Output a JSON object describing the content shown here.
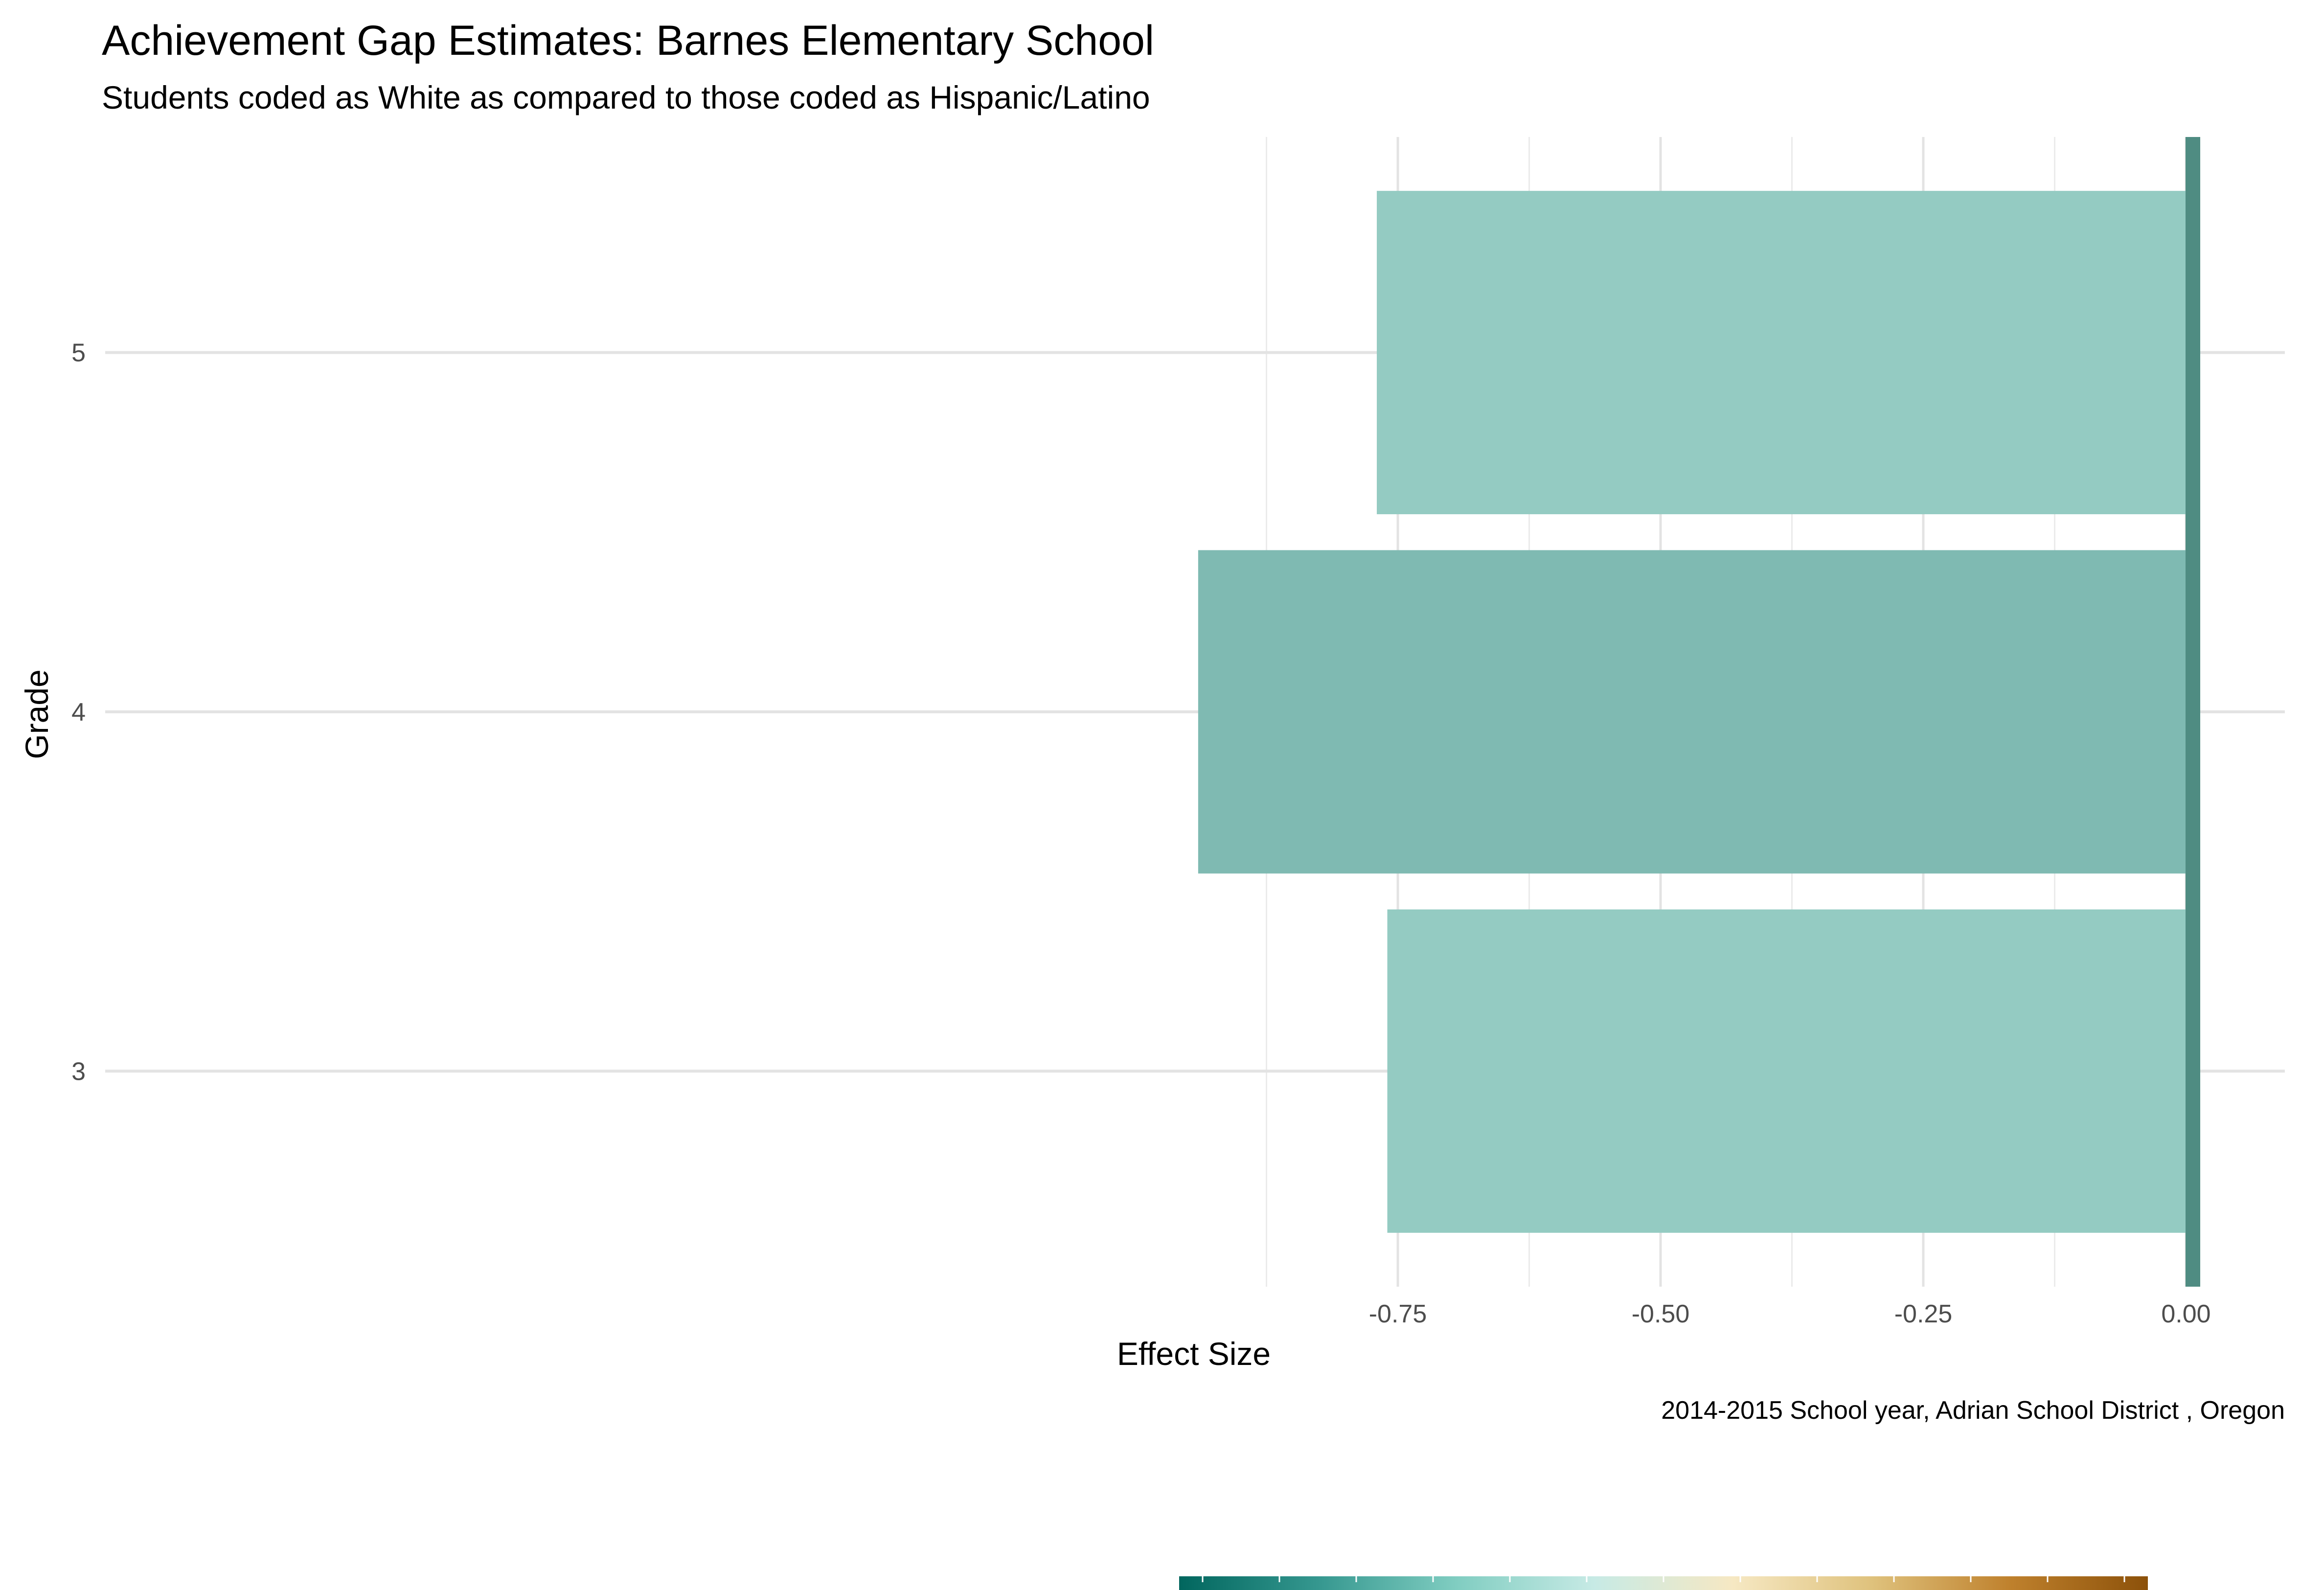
{
  "chart_data": {
    "type": "bar",
    "orientation": "horizontal",
    "title": "Achievement Gap Estimates: Barnes Elementary School",
    "subtitle": "Students coded as White as compared to those coded as Hispanic/Latino",
    "caption": "2014-2015 School year,  Adrian School District , Oregon",
    "xlabel": "Effect Size",
    "ylabel": "Grade",
    "categories": [
      "3",
      "4",
      "5"
    ],
    "values": [
      -0.76,
      -0.94,
      -0.77
    ],
    "bar_colors": [
      "#94cbc2",
      "#7fbab2",
      "#94cbc2"
    ],
    "reference_line": {
      "value": 0.0,
      "color": "#4f8c82"
    },
    "xlim": [
      -1.0,
      0.0
    ],
    "xticks": [
      -0.75,
      -0.5,
      -0.25,
      0.0
    ],
    "xtick_labels": [
      "-0.75",
      "-0.50",
      "-0.25",
      "0.00"
    ],
    "x_minor_ticks": [
      -0.875,
      -0.625,
      -0.375,
      -0.125
    ],
    "grid": true,
    "legend": {
      "type": "colorbar",
      "placement": "bottom",
      "colors": [
        "#01665e",
        "#35978f",
        "#80cdc1",
        "#c7eae5",
        "#f6e8c3",
        "#dfc27d",
        "#bf812d",
        "#8c510a"
      ]
    }
  }
}
